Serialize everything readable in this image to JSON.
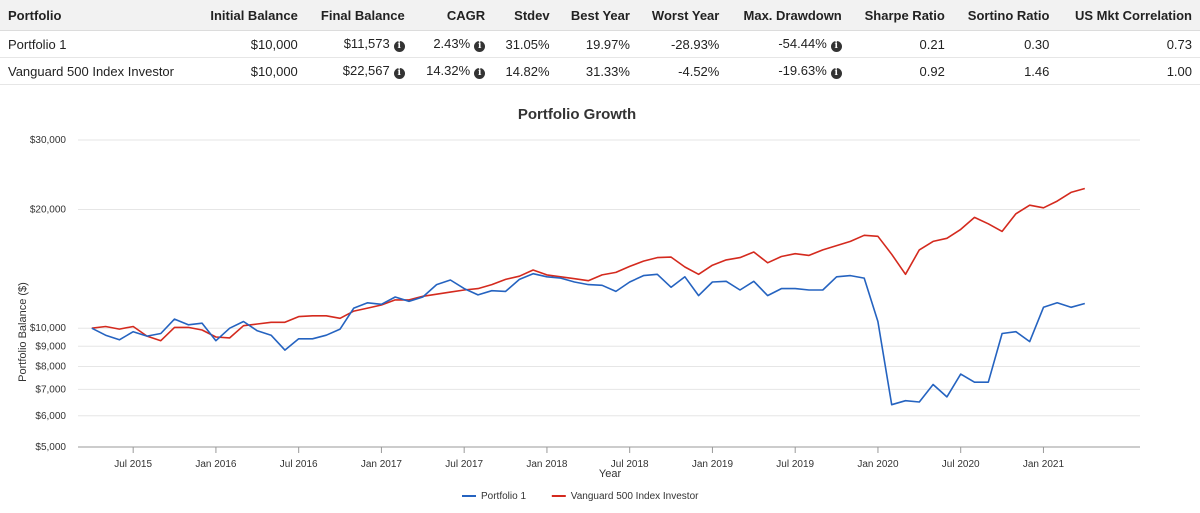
{
  "table": {
    "headers": [
      "Portfolio",
      "Initial Balance",
      "Final Balance",
      "CAGR",
      "Stdev",
      "Best Year",
      "Worst Year",
      "Max. Drawdown",
      "Sharpe Ratio",
      "Sortino Ratio",
      "US Mkt Correlation"
    ],
    "rows": [
      {
        "portfolio": "Portfolio 1",
        "initial": "$10,000",
        "final": "$11,573",
        "cagr": "2.43%",
        "stdev": "31.05%",
        "best": "19.97%",
        "worst": "-28.93%",
        "drawdown": "-54.44%",
        "sharpe": "0.21",
        "sortino": "0.30",
        "corr": "0.73"
      },
      {
        "portfolio": "Vanguard 500 Index Investor",
        "initial": "$10,000",
        "final": "$22,567",
        "cagr": "14.32%",
        "stdev": "14.82%",
        "best": "31.33%",
        "worst": "-4.52%",
        "drawdown": "-19.63%",
        "sharpe": "0.92",
        "sortino": "1.46",
        "corr": "1.00"
      }
    ]
  },
  "chart_data": {
    "type": "line",
    "title": "Portfolio Growth",
    "xlabel": "Year",
    "ylabel": "Portfolio Balance ($)",
    "yscale": "log",
    "ylim": [
      5000,
      30000
    ],
    "yticks": [
      5000,
      6000,
      7000,
      8000,
      9000,
      10000,
      20000,
      30000
    ],
    "ytick_labels": [
      "$5,000",
      "$6,000",
      "$7,000",
      "$8,000",
      "$9,000",
      "$10,000",
      "$20,000",
      "$30,000"
    ],
    "x_start": "2015-04",
    "xticks": [
      3,
      9,
      15,
      21,
      27,
      33,
      39,
      45,
      51,
      57,
      63,
      69
    ],
    "xtick_labels": [
      "Jul 2015",
      "Jan 2016",
      "Jul 2016",
      "Jan 2017",
      "Jul 2017",
      "Jan 2018",
      "Jul 2018",
      "Jan 2019",
      "Jul 2019",
      "Jan 2020",
      "Jul 2020",
      "Jan 2021"
    ],
    "xlim": [
      -1,
      76
    ],
    "legend_position": "bottom",
    "series": [
      {
        "name": "Portfolio 1",
        "color": "#2563c0",
        "values": [
          10000,
          9600,
          9350,
          9800,
          9550,
          9700,
          10550,
          10200,
          10300,
          9300,
          10000,
          10400,
          9850,
          9600,
          8800,
          9400,
          9400,
          9600,
          9950,
          11250,
          11600,
          11500,
          12000,
          11700,
          12000,
          12900,
          13250,
          12600,
          12150,
          12450,
          12400,
          13300,
          13750,
          13500,
          13400,
          13100,
          12900,
          12850,
          12400,
          13100,
          13600,
          13700,
          12700,
          13500,
          12100,
          13100,
          13150,
          12500,
          13150,
          12100,
          12600,
          12600,
          12500,
          12500,
          13500,
          13600,
          13400,
          10400,
          6400,
          6550,
          6500,
          7200,
          6700,
          7650,
          7300,
          7300,
          9700,
          9800,
          9250,
          11300,
          11600,
          11300,
          11550
        ]
      },
      {
        "name": "Vanguard 500 Index Investor",
        "color": "#d42a1e",
        "values": [
          10000,
          10100,
          9950,
          10100,
          9550,
          9300,
          10050,
          10050,
          9900,
          9500,
          9450,
          10150,
          10250,
          10350,
          10350,
          10700,
          10750,
          10750,
          10600,
          11050,
          11250,
          11450,
          11800,
          11800,
          12050,
          12200,
          12350,
          12500,
          12600,
          12900,
          13300,
          13550,
          14050,
          13650,
          13500,
          13350,
          13200,
          13650,
          13850,
          14350,
          14800,
          15100,
          15150,
          14300,
          13700,
          14450,
          14900,
          15100,
          15600,
          14650,
          15200,
          15450,
          15300,
          15800,
          16200,
          16600,
          17200,
          17100,
          15400,
          13700,
          15800,
          16600,
          16900,
          17800,
          19100,
          18400,
          17600,
          19500,
          20500,
          20200,
          21000,
          22100,
          22600
        ]
      }
    ]
  }
}
